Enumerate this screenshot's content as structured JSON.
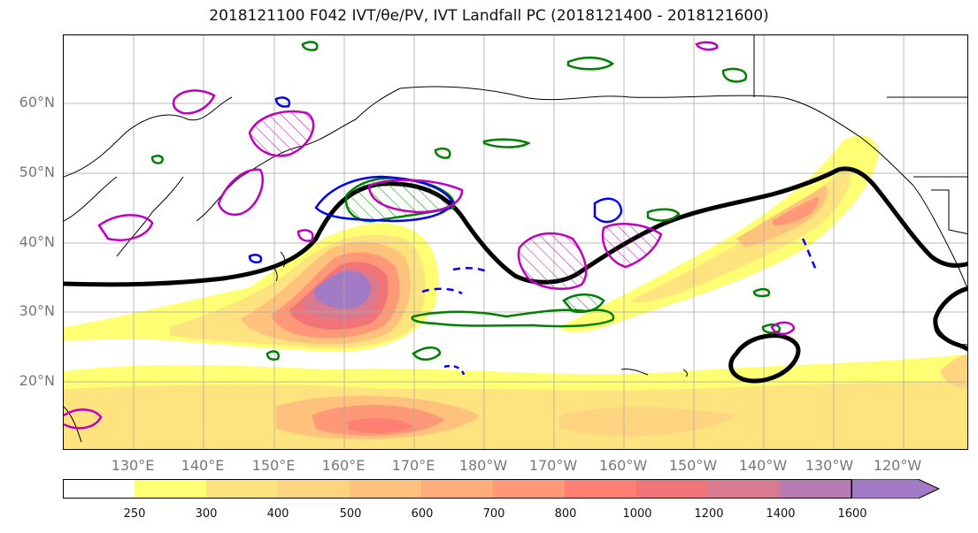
{
  "title": "2018121100 F042 IVT/θe/PV, IVT Landfall PC (2018121400 - 2018121600)",
  "lat_labels": [
    "60°N",
    "50°N",
    "40°N",
    "30°N",
    "20°N"
  ],
  "lon_labels": [
    "130°E",
    "140°E",
    "150°E",
    "160°E",
    "170°E",
    "180°W",
    "170°W",
    "160°W",
    "150°W",
    "140°W",
    "130°W",
    "120°W"
  ],
  "colorbar": {
    "ticks": [
      "250",
      "300",
      "400",
      "500",
      "600",
      "700",
      "800",
      "1000",
      "1200",
      "1400",
      "1600"
    ],
    "colors": [
      "#ffffff",
      "#ffff73",
      "#ffe37f",
      "#ffd480",
      "#ffc27d",
      "#ffad7a",
      "#ff9877",
      "#ff8072",
      "#f07478",
      "#d97a91",
      "#b87bb3",
      "#a27ac6"
    ]
  },
  "colors": {
    "jet_contour": "#000000",
    "green_contour": "#008000",
    "blue_contour": "#0000ff",
    "magenta_contour": "#c000c0",
    "gridline": "#aaaaaa"
  }
}
